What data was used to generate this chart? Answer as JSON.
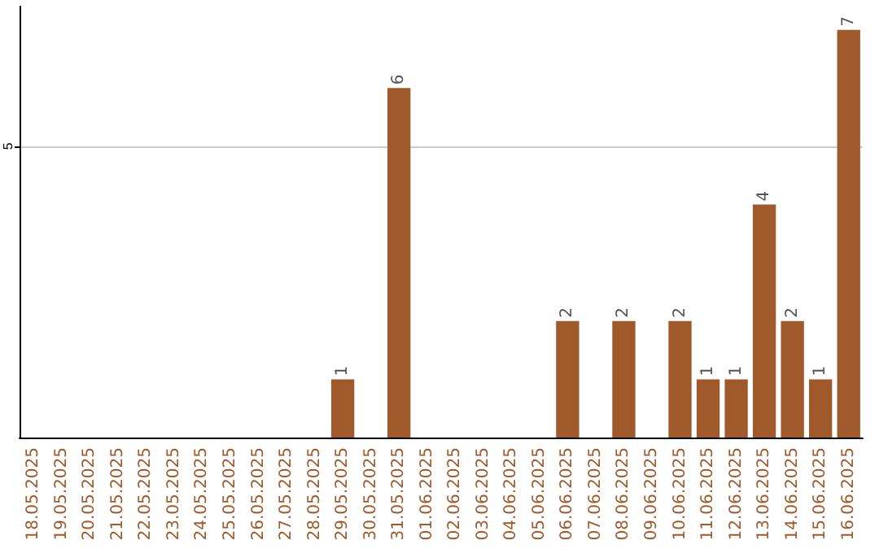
{
  "chart_data": {
    "type": "bar",
    "categories": [
      "18.05.2025",
      "19.05.2025",
      "20.05.2025",
      "21.05.2025",
      "22.05.2025",
      "23.05.2025",
      "24.05.2025",
      "25.05.2025",
      "26.05.2025",
      "27.05.2025",
      "28.05.2025",
      "29.05.2025",
      "30.05.2025",
      "31.05.2025",
      "01.06.2025",
      "02.06.2025",
      "03.06.2025",
      "04.06.2025",
      "05.06.2025",
      "06.06.2025",
      "07.06.2025",
      "08.06.2025",
      "09.06.2025",
      "10.06.2025",
      "11.06.2025",
      "12.06.2025",
      "13.06.2025",
      "14.06.2025",
      "15.06.2025",
      "16.06.2025"
    ],
    "values": [
      0,
      0,
      0,
      0,
      0,
      0,
      0,
      0,
      0,
      0,
      0,
      1,
      0,
      6,
      0,
      0,
      0,
      0,
      0,
      2,
      0,
      2,
      0,
      2,
      1,
      1,
      4,
      2,
      1,
      7
    ],
    "value_labels": [
      null,
      null,
      null,
      null,
      null,
      null,
      null,
      null,
      null,
      null,
      null,
      "1",
      null,
      "6",
      null,
      null,
      null,
      null,
      null,
      "2",
      null,
      "2",
      null,
      "2",
      "1",
      "1",
      "4",
      "2",
      "1",
      "7"
    ],
    "color": "#a0592b",
    "ylim": [
      0,
      7.4
    ],
    "yticks": [
      5
    ],
    "grid": "y"
  }
}
